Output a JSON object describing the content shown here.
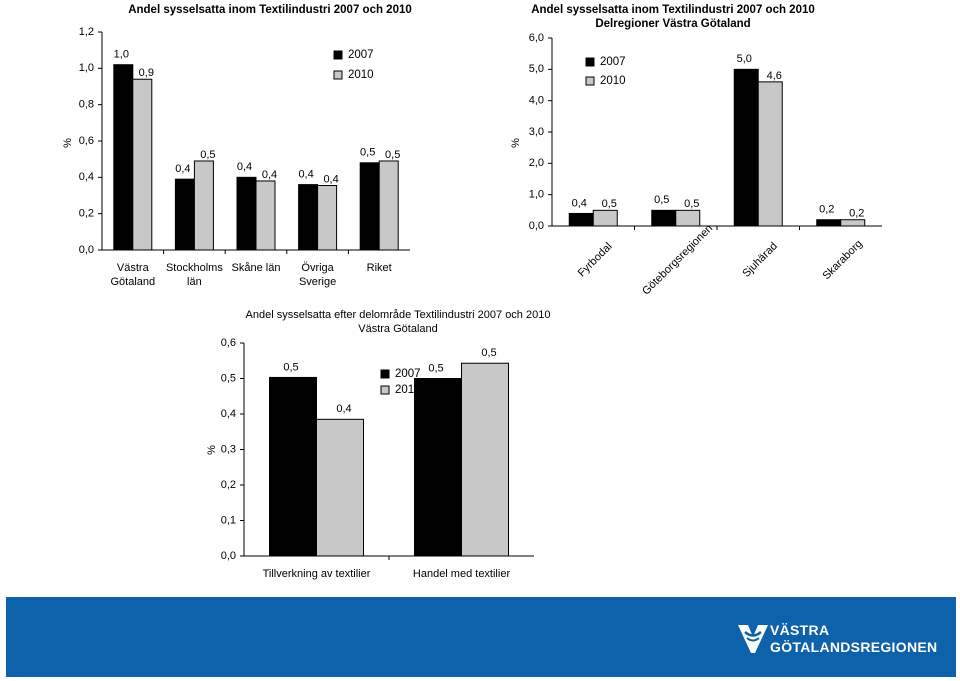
{
  "chart_data": [
    {
      "type": "bar",
      "title": "Andel sysselsatta inom Textilindustri 2007 och 2010",
      "ylabel": "%",
      "ylim": [
        0,
        1.2
      ],
      "yticks": [
        "0,0",
        "0,2",
        "0,4",
        "0,6",
        "0,8",
        "1,0",
        "1,2"
      ],
      "categories": [
        [
          "Västra",
          "Götaland"
        ],
        [
          "Stockholms",
          "län"
        ],
        [
          "Skåne län"
        ],
        [
          "Övriga",
          "Sverige"
        ],
        [
          "Riket"
        ]
      ],
      "series": [
        {
          "name": "2007",
          "color": "#000000",
          "values": [
            1.02,
            0.39,
            0.4,
            0.36,
            0.48
          ],
          "labels": [
            "1,0",
            "0,4",
            "0,4",
            "0,4",
            "0,5"
          ]
        },
        {
          "name": "2010",
          "color": "#c8c8c8",
          "values": [
            0.94,
            0.49,
            0.38,
            0.355,
            0.49
          ],
          "labels": [
            "0,9",
            "0,5",
            "0,4",
            "0,4",
            "0,5"
          ]
        }
      ],
      "legend": "top-right",
      "grid": false
    },
    {
      "type": "bar",
      "title": "Andel sysselsatta inom Textilindustri 2007 och 2010",
      "subtitle": "Delregioner Västra Götaland",
      "ylabel": "%",
      "ylim": [
        0,
        6
      ],
      "yticks": [
        "0,0",
        "1,0",
        "2,0",
        "3,0",
        "4,0",
        "5,0",
        "6,0"
      ],
      "categories": [
        "Fyrbodal",
        "Göteborgsregionen",
        "Sjuhärad",
        "Skaraborg"
      ],
      "series": [
        {
          "name": "2007",
          "color": "#000000",
          "values": [
            0.4,
            0.5,
            5.0,
            0.2
          ],
          "labels": [
            "0,4",
            "0,5",
            "5,0",
            "0,2"
          ]
        },
        {
          "name": "2010",
          "color": "#c8c8c8",
          "values": [
            0.5,
            0.5,
            4.6,
            0.2
          ],
          "labels": [
            "0,5",
            "0,5",
            "4,6",
            "0,2"
          ]
        }
      ],
      "legend": "top-left",
      "grid": false
    },
    {
      "type": "bar",
      "title": "Andel sysselsatta efter delområde Textilindustri 2007 och 2010",
      "subtitle": "Västra Götaland",
      "ylabel": "%",
      "ylim": [
        0,
        0.6
      ],
      "yticks": [
        "0,0",
        "0,1",
        "0,2",
        "0,3",
        "0,4",
        "0,5",
        "0,6"
      ],
      "categories": [
        [
          "Tillverkning av textilier"
        ],
        [
          "Handel med textilier"
        ]
      ],
      "series": [
        {
          "name": "2007",
          "color": "#000000",
          "values": [
            0.503,
            0.5
          ],
          "labels": [
            "0,5",
            "0,5"
          ]
        },
        {
          "name": "2010",
          "color": "#c8c8c8",
          "values": [
            0.385,
            0.543
          ],
          "labels": [
            "0,4",
            "0,5"
          ]
        }
      ],
      "legend": "top-center",
      "grid": false
    }
  ],
  "banner": {
    "color": "#0e62ab",
    "logo_line1": "VÄSTRA",
    "logo_line2": "GÖTALANDSREGIONEN"
  }
}
